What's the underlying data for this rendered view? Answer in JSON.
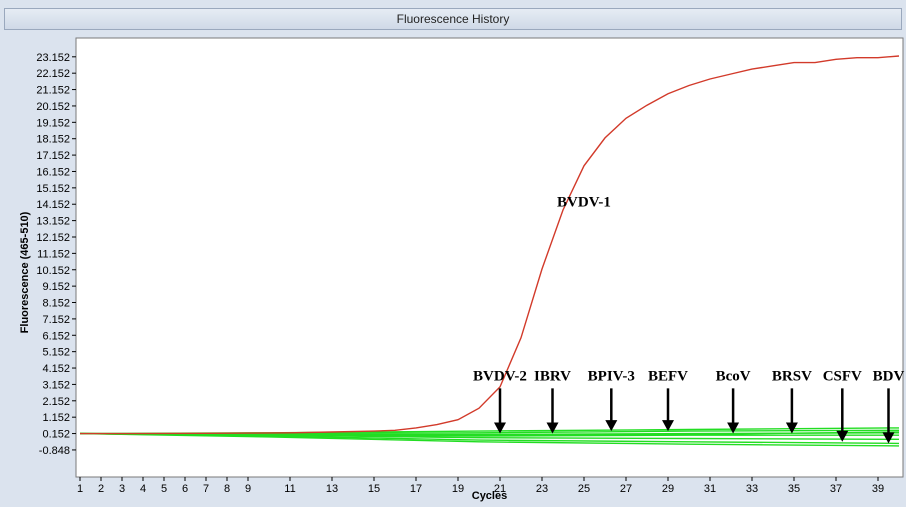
{
  "window": {
    "title": "Fluorescence History"
  },
  "chart_data": {
    "type": "line",
    "title": "",
    "xlabel": "Cycles",
    "ylabel": "Fluorescence (465-510)",
    "xlim": [
      1,
      40
    ],
    "ylim": [
      -2.5,
      24.3
    ],
    "x_ticks": [
      1,
      2,
      3,
      4,
      5,
      6,
      7,
      8,
      9,
      11,
      13,
      15,
      17,
      19,
      21,
      23,
      25,
      27,
      29,
      31,
      33,
      35,
      37,
      39
    ],
    "y_ticks": [
      -0.848,
      0.152,
      1.152,
      2.152,
      3.152,
      4.152,
      5.152,
      6.152,
      7.152,
      8.152,
      9.152,
      10.152,
      11.152,
      12.152,
      13.152,
      14.152,
      15.152,
      16.152,
      17.152,
      18.152,
      19.152,
      20.152,
      21.152,
      22.152,
      23.152
    ],
    "y_tick_labels": [
      "-0.848",
      "0.152",
      "1.152",
      "2.152",
      "3.152",
      "4.152",
      "5.152",
      "6.152",
      "7.152",
      "8.152",
      "9.152",
      "10.152",
      "11.152",
      "12.152",
      "13.152",
      "14.152",
      "15.152",
      "16.152",
      "17.152",
      "18.152",
      "19.152",
      "20.152",
      "21.152",
      "22.152",
      "23.152"
    ],
    "grid": false,
    "colors": {
      "positive": "#d23a2a",
      "negative": "#22dd22"
    },
    "series": [
      {
        "color": "#d23a2a",
        "x": [
          1,
          3,
          5,
          7,
          9,
          11,
          13,
          15,
          16,
          17,
          18,
          19,
          20,
          21,
          22,
          23,
          24,
          25,
          26,
          27,
          28,
          29,
          30,
          31,
          32,
          33,
          34,
          35,
          36,
          37,
          38,
          39,
          40
        ],
        "values": [
          0.152,
          0.15,
          0.16,
          0.17,
          0.18,
          0.2,
          0.25,
          0.3,
          0.35,
          0.5,
          0.7,
          1.0,
          1.7,
          3.0,
          6.0,
          10.2,
          13.8,
          16.5,
          18.2,
          19.4,
          20.2,
          20.9,
          21.4,
          21.8,
          22.1,
          22.4,
          22.6,
          22.8,
          22.8,
          23.0,
          23.1,
          23.1,
          23.2
        ]
      },
      {
        "color": "#22dd22",
        "x": [
          1,
          10,
          20,
          30,
          40
        ],
        "values": [
          0.152,
          0.2,
          0.3,
          0.4,
          0.5
        ]
      },
      {
        "color": "#22dd22",
        "x": [
          1,
          10,
          20,
          30,
          40
        ],
        "values": [
          0.152,
          0.15,
          0.2,
          0.3,
          0.35
        ]
      },
      {
        "color": "#22dd22",
        "x": [
          1,
          10,
          20,
          30,
          40
        ],
        "values": [
          0.152,
          0.1,
          0.1,
          0.15,
          0.2
        ]
      },
      {
        "color": "#22dd22",
        "x": [
          1,
          10,
          20,
          30,
          40
        ],
        "values": [
          0.152,
          0.05,
          0.0,
          0.05,
          0.05
        ]
      },
      {
        "color": "#22dd22",
        "x": [
          1,
          10,
          20,
          30,
          40
        ],
        "values": [
          0.152,
          0.05,
          -0.1,
          -0.15,
          -0.2
        ]
      },
      {
        "color": "#22dd22",
        "x": [
          1,
          10,
          20,
          30,
          40
        ],
        "values": [
          0.152,
          0.0,
          -0.25,
          -0.35,
          -0.45
        ]
      },
      {
        "color": "#22dd22",
        "x": [
          1,
          10,
          20,
          30,
          40
        ],
        "values": [
          0.152,
          -0.05,
          -0.35,
          -0.5,
          -0.6
        ]
      },
      {
        "color": "#22dd22",
        "x": [
          1,
          10,
          20,
          30,
          40
        ],
        "values": [
          0.152,
          0.1,
          0.05,
          0.1,
          0.25
        ]
      }
    ],
    "annotations": [
      {
        "text": "BVDV-1",
        "x": 25.0,
        "y": 14.0
      }
    ],
    "arrow_labels": [
      {
        "text": "BVDV-2",
        "x": 21.0,
        "y_text": 3.4,
        "y_tip": 0.152
      },
      {
        "text": "IBRV",
        "x": 23.5,
        "y_text": 3.4,
        "y_tip": 0.152
      },
      {
        "text": "BPIV-3",
        "x": 26.3,
        "y_text": 3.4,
        "y_tip": 0.3
      },
      {
        "text": "BEFV",
        "x": 29.0,
        "y_text": 3.4,
        "y_tip": 0.3
      },
      {
        "text": "BcoV",
        "x": 32.1,
        "y_text": 3.4,
        "y_tip": 0.152
      },
      {
        "text": "BRSV",
        "x": 34.9,
        "y_text": 3.4,
        "y_tip": 0.152
      },
      {
        "text": "CSFV",
        "x": 37.3,
        "y_text": 3.4,
        "y_tip": -0.35
      },
      {
        "text": "BDV",
        "x": 39.5,
        "y_text": 3.4,
        "y_tip": -0.45
      }
    ]
  }
}
